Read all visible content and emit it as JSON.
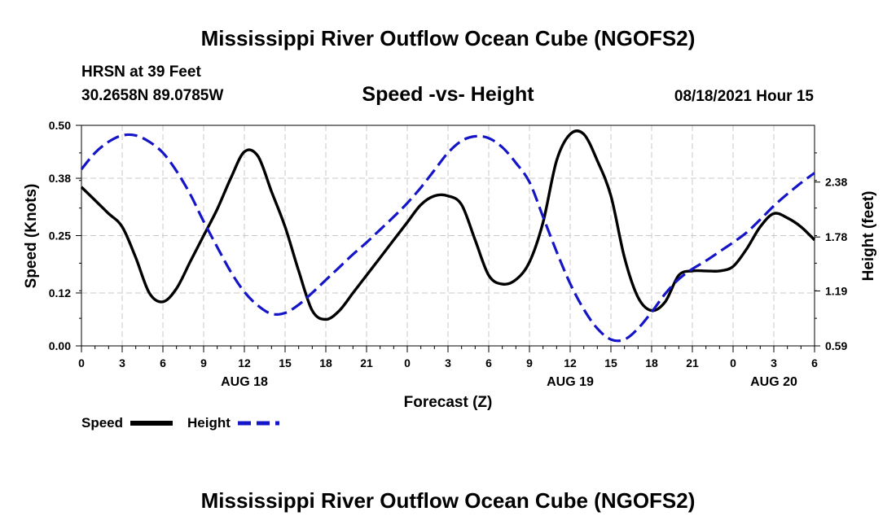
{
  "header": {
    "title": "Mississippi River Outflow Ocean Cube (NGOFS2)",
    "station": "HRSN at 39 Feet",
    "location": "30.2658N  89.0785W",
    "subtitle": "Speed -vs- Height",
    "forecast_time": "08/18/2021 Hour 15"
  },
  "footer": {
    "title": "Mississippi River Outflow Ocean Cube (NGOFS2)"
  },
  "legend": {
    "speed_label": "Speed",
    "height_label": "Height"
  },
  "colors": {
    "speed": "#000000",
    "height": "#1515c8",
    "grid": "#c8c8c8",
    "axis": "#000000"
  },
  "chart_data": {
    "type": "line",
    "title": "Speed -vs- Height",
    "xlabel": "Forecast (Z)",
    "ylabel_left": "Speed (Knots)",
    "ylabel_right": "Height (feet)",
    "x_range": [
      0,
      54
    ],
    "x_ticks": [
      0,
      3,
      6,
      9,
      12,
      15,
      18,
      21,
      24,
      27,
      30,
      33,
      36,
      39,
      42,
      45,
      48,
      51,
      54
    ],
    "x_tick_labels": [
      "0",
      "3",
      "6",
      "9",
      "12",
      "15",
      "18",
      "21",
      "0",
      "3",
      "6",
      "9",
      "12",
      "15",
      "18",
      "21",
      "0",
      "3",
      "6"
    ],
    "date_labels": [
      {
        "x": 12,
        "label": "AUG 18"
      },
      {
        "x": 36,
        "label": "AUG 19"
      },
      {
        "x": 51,
        "label": "AUG 20"
      }
    ],
    "left_axis": {
      "range": [
        0,
        0.5
      ],
      "ticks": [
        0,
        0.12,
        0.25,
        0.38,
        0.5
      ],
      "tick_labels": [
        "0.00",
        "0.12",
        "0.25",
        "0.38",
        "0.50"
      ]
    },
    "right_axis": {
      "range": [
        0.59,
        3.0
      ],
      "ticks": [
        0.59,
        1.19,
        1.78,
        2.38
      ],
      "tick_labels": [
        "0.59",
        "1.19",
        "1.78",
        "2.38"
      ]
    },
    "grid": true,
    "series": [
      {
        "name": "Speed",
        "axis": "left",
        "style": "solid",
        "x": [
          0,
          1,
          2,
          3,
          4,
          5,
          6,
          7,
          8,
          9,
          10,
          11,
          12,
          13,
          14,
          15,
          16,
          17,
          18,
          19,
          20,
          21,
          22,
          23,
          24,
          25,
          26,
          27,
          28,
          29,
          30,
          31,
          32,
          33,
          34,
          35,
          36,
          37,
          38,
          39,
          40,
          41,
          42,
          43,
          44,
          45,
          46,
          47,
          48,
          49,
          50,
          51,
          52,
          53,
          54
        ],
        "values": [
          0.36,
          0.33,
          0.3,
          0.27,
          0.2,
          0.12,
          0.1,
          0.13,
          0.19,
          0.25,
          0.31,
          0.38,
          0.44,
          0.43,
          0.35,
          0.27,
          0.17,
          0.08,
          0.06,
          0.08,
          0.12,
          0.16,
          0.2,
          0.24,
          0.28,
          0.32,
          0.34,
          0.34,
          0.32,
          0.24,
          0.16,
          0.14,
          0.15,
          0.19,
          0.28,
          0.42,
          0.48,
          0.48,
          0.42,
          0.34,
          0.2,
          0.11,
          0.08,
          0.1,
          0.16,
          0.17,
          0.17,
          0.17,
          0.18,
          0.22,
          0.27,
          0.3,
          0.29,
          0.27,
          0.24
        ]
      },
      {
        "name": "Height",
        "axis": "right",
        "style": "dashed",
        "x": [
          0,
          1,
          2,
          3,
          4,
          5,
          6,
          7,
          8,
          9,
          10,
          11,
          12,
          13,
          14,
          15,
          16,
          17,
          18,
          19,
          20,
          21,
          22,
          23,
          24,
          25,
          26,
          27,
          28,
          29,
          30,
          31,
          32,
          33,
          34,
          35,
          36,
          37,
          38,
          39,
          40,
          41,
          42,
          43,
          44,
          45,
          46,
          47,
          48,
          49,
          50,
          51,
          52,
          53,
          54
        ],
        "values": [
          2.52,
          2.7,
          2.82,
          2.89,
          2.89,
          2.82,
          2.7,
          2.5,
          2.25,
          1.95,
          1.67,
          1.4,
          1.18,
          1.03,
          0.94,
          0.95,
          1.04,
          1.17,
          1.31,
          1.45,
          1.59,
          1.72,
          1.86,
          2.0,
          2.15,
          2.32,
          2.51,
          2.7,
          2.83,
          2.88,
          2.86,
          2.76,
          2.59,
          2.38,
          2.0,
          1.62,
          1.27,
          0.99,
          0.78,
          0.66,
          0.66,
          0.78,
          0.96,
          1.16,
          1.32,
          1.43,
          1.52,
          1.62,
          1.72,
          1.83,
          1.97,
          2.12,
          2.25,
          2.37,
          2.48
        ]
      }
    ]
  }
}
